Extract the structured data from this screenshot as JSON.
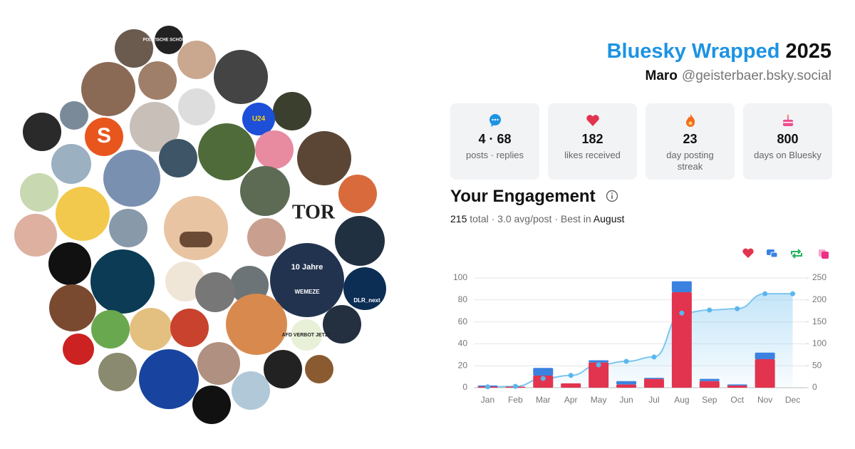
{
  "header": {
    "title": "Bluesky Wrapped",
    "year": "2025",
    "name": "Maro",
    "handle": "@geisterbaer.bsky.social"
  },
  "stats": [
    {
      "value": "4 · 68",
      "label": "posts · replies"
    },
    {
      "value": "182",
      "label": "likes received"
    },
    {
      "value": "23",
      "label": "day posting streak"
    },
    {
      "value": "800",
      "label": "days on Bluesky"
    }
  ],
  "avatar_labels": [
    "POLITISCHE SCHÖNHEIT",
    "U24",
    "S",
    "TOR",
    "10 Jahre",
    "WEMEZE",
    "DLR_next",
    "AFD VERBOT JETZT"
  ],
  "engagement": {
    "title": "Your Engagement",
    "total": "215",
    "summary": "total · 3.0 avg/post · Best in",
    "best": "August"
  },
  "chart_data": {
    "type": "stacked-bar-line",
    "categories": [
      "Jan",
      "Feb",
      "Mar",
      "Apr",
      "May",
      "Jun",
      "Jul",
      "Aug",
      "Sep",
      "Oct",
      "Nov",
      "Dec"
    ],
    "series": [
      {
        "color": "#e2344f",
        "values": [
          1,
          1,
          11,
          4,
          23,
          3,
          8,
          87,
          6,
          2,
          26,
          0
        ]
      },
      {
        "color": "#3b82e0",
        "values": [
          1,
          0,
          7,
          0,
          2,
          3,
          1,
          10,
          2,
          1,
          6,
          0
        ]
      },
      {
        "color": "#7cc6f0",
        "axis": "y2",
        "values": [
          2,
          3,
          21,
          28,
          52,
          60,
          70,
          170,
          177,
          180,
          214,
          214
        ]
      }
    ],
    "ylim": [
      0,
      100
    ],
    "yticks": [
      0,
      20,
      40,
      60,
      80,
      100
    ],
    "y2lim": [
      0,
      250
    ],
    "y2ticks": [
      0,
      50,
      100,
      150,
      200,
      250
    ],
    "grid": true
  }
}
